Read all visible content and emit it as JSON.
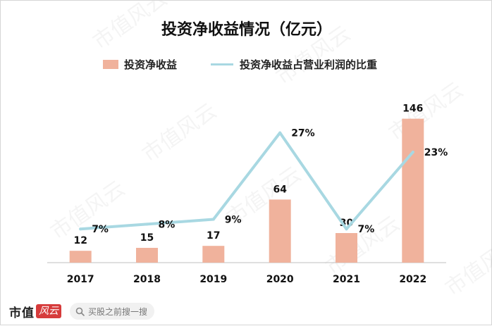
{
  "chart_data": {
    "type": "bar",
    "title": "投资净收益情况（亿元）",
    "categories": [
      "2017",
      "2018",
      "2019",
      "2020",
      "2021",
      "2022"
    ],
    "series": [
      {
        "name": "投资净收益",
        "kind": "bar",
        "color": "#f0b29c",
        "values": [
          12,
          15,
          17,
          64,
          30,
          146
        ],
        "labels": [
          "12",
          "15",
          "17",
          "64",
          "30",
          "146"
        ]
      },
      {
        "name": "投资净收益占营业利润的比重",
        "kind": "line",
        "color": "#a8d8e2",
        "values": [
          7,
          8,
          9,
          27,
          7,
          23
        ],
        "labels": [
          "7%",
          "8%",
          "9%",
          "27%",
          "7%",
          "23%"
        ]
      }
    ],
    "ylim_bar": [
      0,
      160
    ],
    "ylim_line": [
      0,
      32
    ],
    "legend": "top-center",
    "grid": false
  },
  "watermark": {
    "text": "市值风云"
  },
  "footer": {
    "brand_text": "市值",
    "brand_logo_text": "风云",
    "search_placeholder": "买股之前搜一搜",
    "search_icon": "search-icon"
  }
}
